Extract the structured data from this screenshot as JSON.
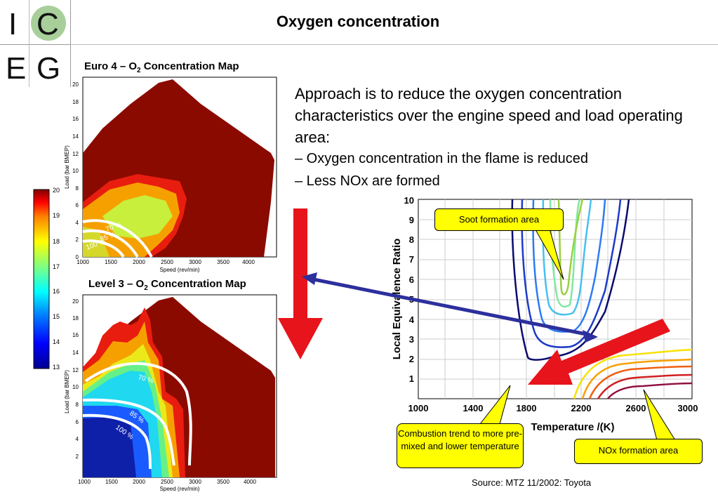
{
  "logo": {
    "letters": [
      "I",
      "C",
      "E",
      "G"
    ]
  },
  "slide": {
    "title": "Oxygen concentration"
  },
  "maps": {
    "euro4": {
      "title_pre": "Euro 4 – O",
      "title_sub": "2",
      "title_post": " Concentration Map",
      "ylabel": "Load (bar BMEP)",
      "xlabel": "Speed (rev/min)",
      "xticks": [
        "1000",
        "1500",
        "2000",
        "2500",
        "3000",
        "3500",
        "4000"
      ],
      "yticks": [
        "0",
        "2",
        "4",
        "6",
        "8",
        "10",
        "12",
        "14",
        "16",
        "18",
        "20"
      ],
      "contour_labels": [
        "70 %",
        "85 %",
        "100 %"
      ]
    },
    "level3": {
      "title_pre": "Level 3 – O",
      "title_sub": "2",
      "title_post": " Concentration Map",
      "ylabel": "Load (bar BMEP)",
      "xlabel": "Speed (rev/min)",
      "xticks": [
        "1000",
        "1500",
        "2000",
        "2500",
        "3000",
        "3500",
        "4000"
      ],
      "yticks": [
        "2",
        "4",
        "6",
        "8",
        "10",
        "12",
        "14",
        "16",
        "18",
        "20"
      ],
      "contour_labels": [
        "70 %",
        "85 %",
        "100 %"
      ]
    },
    "colorbar": {
      "ticks": [
        "13",
        "14",
        "15",
        "16",
        "17",
        "18",
        "19",
        "20"
      ]
    }
  },
  "text": {
    "approach": "Approach is to reduce the oxygen concentration characteristics over the engine speed and load operating area:",
    "bullets": [
      "– Oxygen concentration in the flame is reduced",
      "– Less NOx are formed"
    ]
  },
  "phi_chart": {
    "ylabel": "Local Equivalence Ratio",
    "xlabel": "Temperature /(K)",
    "xticks": [
      "1000",
      "1400",
      "1800",
      "2200",
      "2600",
      "3000"
    ],
    "yticks": [
      "1",
      "2",
      "3",
      "4",
      "5",
      "6",
      "7",
      "8",
      "9",
      "10"
    ]
  },
  "callouts": {
    "soot": "Soot formation area",
    "combustion": "Combustion trend to more pre-mixed and lower temperature",
    "nox": "NOx formation area"
  },
  "source": "Source: MTZ 11/2002: Toyota",
  "colors": {
    "accent_red": "#e8141b",
    "arrow_blue": "#2c2f9c",
    "callout_yellow": "#ffff00",
    "map_dark_red": "#8b0a00"
  }
}
